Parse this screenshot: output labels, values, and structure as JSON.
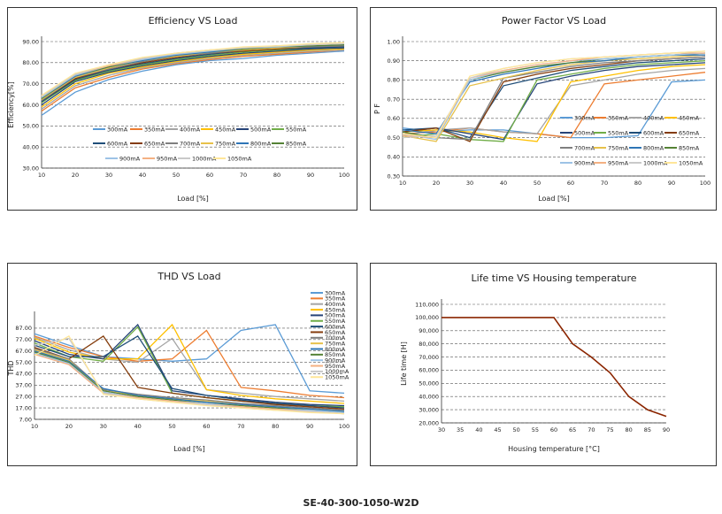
{
  "model": "SE-40-300-1050-W2D",
  "colors": {
    "300mA": "#5b9bd5",
    "350mA": "#ed7d31",
    "400mA": "#a5a5a5",
    "450mA": "#ffc000",
    "500mA": "#264478",
    "550mA": "#70ad47",
    "600mA": "#1f4e79",
    "650mA": "#843c0c",
    "700mA": "#7f7f7f",
    "750mA": "#e7c14a",
    "800mA": "#2e75b6",
    "850mA": "#548235",
    "900mA": "#9dc3e6",
    "950mA": "#f4b183",
    "1000mA": "#c9c9c9",
    "1050mA": "#ffe699",
    "life": "#8b2500"
  },
  "chart_data": [
    {
      "type": "line",
      "title": "Efficiency VS Load",
      "xlabel": "Load [%]",
      "ylabel": "Efficiency[%]",
      "x": [
        10,
        20,
        30,
        40,
        50,
        60,
        70,
        80,
        90,
        100
      ],
      "xlim": [
        10,
        100
      ],
      "ylim": [
        30,
        90
      ],
      "yticks": [
        "30.00",
        "40.00",
        "50.00",
        "60.00",
        "70.00",
        "80.00",
        "90.00"
      ],
      "legend": "inside-center",
      "series": [
        {
          "name": "300mA",
          "values": [
            55,
            66,
            72,
            76,
            79,
            81,
            82,
            83.5,
            84.5,
            85.5
          ]
        },
        {
          "name": "350mA",
          "values": [
            57,
            68,
            73,
            77,
            79.5,
            81.5,
            83,
            84,
            85,
            86
          ]
        },
        {
          "name": "400mA",
          "values": [
            58,
            69,
            74,
            77.5,
            80,
            82,
            83.5,
            84.5,
            85.5,
            86
          ]
        },
        {
          "name": "450mA",
          "values": [
            59,
            70,
            75,
            78,
            80.5,
            82.5,
            84,
            85,
            86,
            86.5
          ]
        },
        {
          "name": "500mA",
          "values": [
            60,
            71,
            75.5,
            78.5,
            81,
            83,
            84.5,
            85.5,
            86.5,
            87
          ]
        },
        {
          "name": "550mA",
          "values": [
            61,
            71.5,
            76,
            79,
            81.5,
            83.5,
            85,
            86,
            87,
            87.5
          ]
        },
        {
          "name": "600mA",
          "values": [
            61.5,
            72,
            76.5,
            79.5,
            82,
            84,
            85.5,
            86.5,
            87,
            87.5
          ]
        },
        {
          "name": "650mA",
          "values": [
            62,
            72.5,
            77,
            80,
            82.5,
            84.5,
            85.5,
            86.5,
            87.5,
            88
          ]
        },
        {
          "name": "700mA",
          "values": [
            62,
            73,
            77,
            80.5,
            83,
            84.5,
            86,
            87,
            87.5,
            88
          ]
        },
        {
          "name": "750mA",
          "values": [
            62.5,
            73,
            77.5,
            81,
            83,
            85,
            86,
            87,
            88,
            88.5
          ]
        },
        {
          "name": "800mA",
          "values": [
            63,
            73.5,
            78,
            81,
            83.5,
            85,
            86.5,
            87.5,
            88,
            88.5
          ]
        },
        {
          "name": "850mA",
          "values": [
            63,
            74,
            78,
            81.5,
            84,
            85.5,
            86.5,
            87.5,
            88,
            88.5
          ]
        },
        {
          "name": "900mA",
          "values": [
            63.5,
            74,
            78.5,
            81.5,
            84,
            85.5,
            87,
            87.5,
            88.5,
            89
          ]
        },
        {
          "name": "950mA",
          "values": [
            64,
            74.5,
            78.5,
            82,
            84.5,
            86,
            87,
            88,
            88.5,
            89
          ]
        },
        {
          "name": "1000mA",
          "values": [
            64,
            74.5,
            79,
            82,
            84.5,
            86,
            87,
            88,
            88.5,
            89
          ]
        },
        {
          "name": "1050mA",
          "values": [
            64.5,
            75,
            79,
            82.5,
            84.5,
            86,
            87.5,
            88,
            89,
            89.5
          ]
        }
      ]
    },
    {
      "type": "line",
      "title": "Power Factor VS Load",
      "xlabel": "Load [%]",
      "ylabel": "P F",
      "x": [
        10,
        20,
        30,
        40,
        50,
        60,
        70,
        80,
        90,
        100
      ],
      "xlim": [
        10,
        100
      ],
      "ylim": [
        0.3,
        1.0
      ],
      "yticks": [
        "0.30",
        "0.40",
        "0.50",
        "0.60",
        "0.70",
        "0.80",
        "0.90",
        "1.00"
      ],
      "legend": "inside-bottom-right",
      "series": [
        {
          "name": "300mA",
          "values": [
            0.55,
            0.53,
            0.54,
            0.54,
            0.52,
            0.5,
            0.5,
            0.51,
            0.79,
            0.8
          ]
        },
        {
          "name": "350mA",
          "values": [
            0.52,
            0.53,
            0.55,
            0.53,
            0.52,
            0.5,
            0.78,
            0.8,
            0.82,
            0.84
          ]
        },
        {
          "name": "400mA",
          "values": [
            0.51,
            0.54,
            0.55,
            0.53,
            0.52,
            0.77,
            0.8,
            0.83,
            0.85,
            0.86
          ]
        },
        {
          "name": "450mA",
          "values": [
            0.53,
            0.54,
            0.53,
            0.5,
            0.48,
            0.79,
            0.82,
            0.85,
            0.87,
            0.88
          ]
        },
        {
          "name": "500mA",
          "values": [
            0.53,
            0.55,
            0.52,
            0.49,
            0.78,
            0.82,
            0.85,
            0.87,
            0.88,
            0.89
          ]
        },
        {
          "name": "550mA",
          "values": [
            0.5,
            0.52,
            0.49,
            0.48,
            0.8,
            0.83,
            0.86,
            0.88,
            0.89,
            0.9
          ]
        },
        {
          "name": "600mA",
          "values": [
            0.54,
            0.55,
            0.5,
            0.77,
            0.81,
            0.85,
            0.87,
            0.89,
            0.9,
            0.91
          ]
        },
        {
          "name": "650mA",
          "values": [
            0.53,
            0.55,
            0.48,
            0.79,
            0.83,
            0.86,
            0.88,
            0.9,
            0.91,
            0.92
          ]
        },
        {
          "name": "700mA",
          "values": [
            0.52,
            0.5,
            0.49,
            0.81,
            0.84,
            0.87,
            0.89,
            0.9,
            0.91,
            0.92
          ]
        },
        {
          "name": "750mA",
          "values": [
            0.51,
            0.48,
            0.77,
            0.81,
            0.85,
            0.88,
            0.9,
            0.91,
            0.92,
            0.93
          ]
        },
        {
          "name": "800mA",
          "values": [
            0.54,
            0.52,
            0.79,
            0.83,
            0.86,
            0.89,
            0.9,
            0.92,
            0.93,
            0.93
          ]
        },
        {
          "name": "850mA",
          "values": [
            0.53,
            0.5,
            0.8,
            0.84,
            0.87,
            0.89,
            0.91,
            0.92,
            0.93,
            0.94
          ]
        },
        {
          "name": "900mA",
          "values": [
            0.52,
            0.49,
            0.8,
            0.85,
            0.88,
            0.9,
            0.91,
            0.92,
            0.93,
            0.94
          ]
        },
        {
          "name": "950mA",
          "values": [
            0.51,
            0.5,
            0.81,
            0.85,
            0.88,
            0.9,
            0.92,
            0.93,
            0.94,
            0.94
          ]
        },
        {
          "name": "1000mA",
          "values": [
            0.5,
            0.51,
            0.81,
            0.86,
            0.89,
            0.91,
            0.92,
            0.93,
            0.94,
            0.95
          ]
        },
        {
          "name": "1050mA",
          "values": [
            0.52,
            0.5,
            0.82,
            0.86,
            0.89,
            0.91,
            0.92,
            0.93,
            0.94,
            0.95
          ]
        }
      ]
    },
    {
      "type": "line",
      "title": "THD VS Load",
      "xlabel": "Load [%]",
      "ylabel": "THD",
      "x": [
        10,
        20,
        30,
        40,
        50,
        60,
        70,
        80,
        90,
        100
      ],
      "xlim": [
        10,
        100
      ],
      "ylim": [
        7,
        97
      ],
      "yticks": [
        "7.00",
        "17.00",
        "27.00",
        "37.00",
        "47.00",
        "57.00",
        "67.00",
        "77.00",
        "87.00"
      ],
      "legend": "right",
      "series": [
        {
          "name": "300mA",
          "values": [
            82,
            72,
            62,
            60,
            58,
            60,
            85,
            90,
            32,
            30
          ]
        },
        {
          "name": "350mA",
          "values": [
            80,
            70,
            62,
            58,
            60,
            85,
            35,
            32,
            28,
            26
          ]
        },
        {
          "name": "400mA",
          "values": [
            79,
            68,
            60,
            57,
            78,
            33,
            30,
            27,
            25,
            23
          ]
        },
        {
          "name": "450mA",
          "values": [
            78,
            66,
            60,
            60,
            90,
            33,
            28,
            25,
            23,
            21
          ]
        },
        {
          "name": "500mA",
          "values": [
            76,
            64,
            60,
            90,
            32,
            28,
            25,
            22,
            20,
            19
          ]
        },
        {
          "name": "550mA",
          "values": [
            74,
            62,
            58,
            88,
            30,
            26,
            23,
            21,
            19,
            18
          ]
        },
        {
          "name": "600mA",
          "values": [
            72,
            62,
            62,
            80,
            34,
            28,
            24,
            21,
            19,
            17
          ]
        },
        {
          "name": "650mA",
          "values": [
            70,
            60,
            80,
            35,
            30,
            26,
            23,
            20,
            18,
            16
          ]
        },
        {
          "name": "700mA",
          "values": [
            69,
            60,
            33,
            29,
            26,
            24,
            21,
            19,
            17,
            15
          ]
        },
        {
          "name": "750mA",
          "values": [
            68,
            59,
            32,
            28,
            25,
            23,
            20,
            18,
            16,
            14
          ]
        },
        {
          "name": "800mA",
          "values": [
            67,
            58,
            34,
            28,
            25,
            22,
            20,
            18,
            16,
            14
          ]
        },
        {
          "name": "850mA",
          "values": [
            66,
            57,
            32,
            27,
            24,
            21,
            19,
            17,
            15,
            13
          ]
        },
        {
          "name": "900mA",
          "values": [
            65,
            56,
            31,
            26,
            23,
            21,
            18,
            16,
            15,
            13
          ]
        },
        {
          "name": "950mA",
          "values": [
            64,
            55,
            30,
            26,
            23,
            20,
            18,
            16,
            14,
            12
          ]
        },
        {
          "name": "1000mA",
          "values": [
            72,
            78,
            30,
            25,
            22,
            20,
            17,
            15,
            14,
            12
          ]
        },
        {
          "name": "1050mA",
          "values": [
            63,
            80,
            29,
            25,
            22,
            19,
            17,
            15,
            13,
            12
          ]
        }
      ]
    },
    {
      "type": "line",
      "title": "Life time VS Housing temperature",
      "xlabel": "Housing temperature [°C]",
      "ylabel": "Life time [H]",
      "xlim": [
        30,
        90
      ],
      "ylim": [
        20000,
        110000
      ],
      "xticks": [
        "30",
        "35",
        "40",
        "45",
        "50",
        "55",
        "60",
        "65",
        "70",
        "75",
        "80",
        "85",
        "90"
      ],
      "yticks": [
        "20,000",
        "30,000",
        "40,000",
        "50,000",
        "60,000",
        "70,000",
        "80,000",
        "90,000",
        "100,000",
        "110,000"
      ],
      "series": [
        {
          "x": [
            30,
            40,
            50,
            60,
            65,
            70,
            75,
            80,
            85,
            90
          ],
          "values": [
            100000,
            100000,
            100000,
            100000,
            80000,
            70000,
            58000,
            40000,
            30000,
            25000
          ]
        }
      ]
    }
  ]
}
